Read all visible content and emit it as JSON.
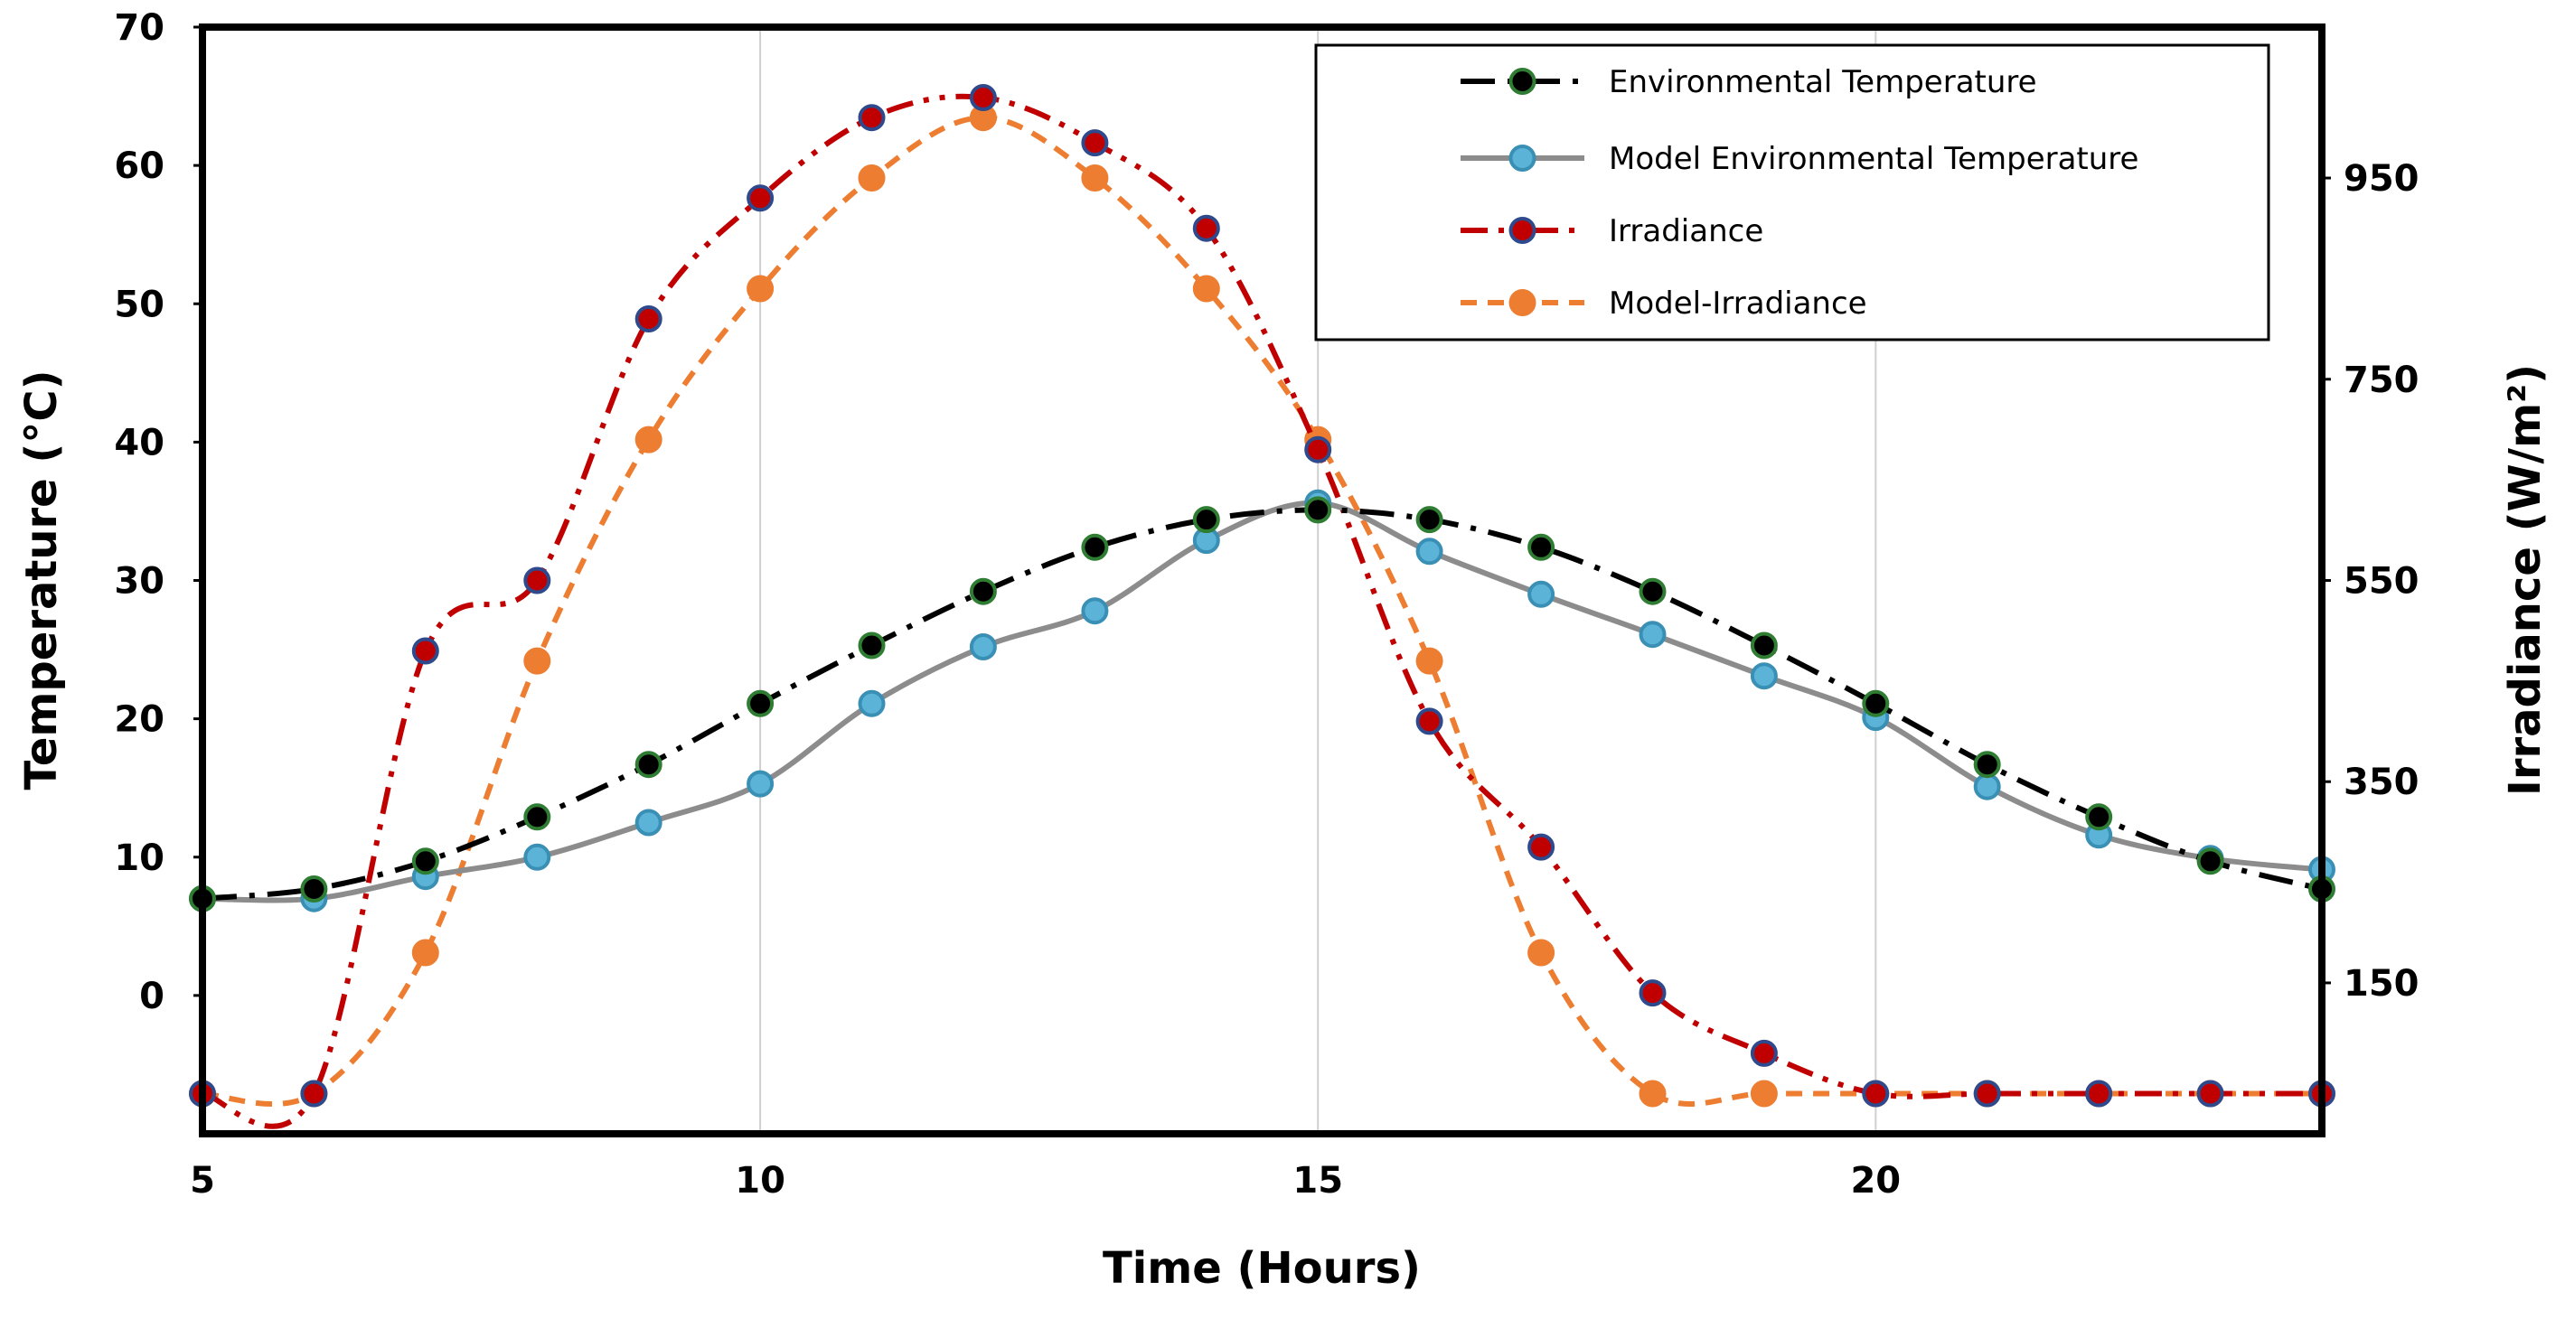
{
  "chart_data": {
    "type": "line",
    "xlabel": "Time (Hours)",
    "ylabel": "Temperature (°C)",
    "y2label": "Irradiance (W/m²)",
    "xlim": [
      5,
      24
    ],
    "ylim": [
      -10,
      70
    ],
    "y2lim": [
      0,
      1100
    ],
    "x_ticks": [
      "5",
      "10",
      "15",
      "20"
    ],
    "y_ticks": [
      "0",
      "10",
      "20",
      "30",
      "40",
      "50",
      "60",
      "70"
    ],
    "y2_ticks": [
      "150",
      "350",
      "550",
      "750",
      "950"
    ],
    "grid": "vertical",
    "legend_position": "top-right",
    "series": [
      {
        "name": "Environmental Temperature",
        "axis": "left",
        "color": "#000000",
        "marker_color": "#000000",
        "marker_edge": "#2e7d32",
        "x": [
          5,
          6,
          7,
          8,
          9,
          10,
          11,
          12,
          13,
          14,
          15,
          16,
          17,
          18,
          19,
          20,
          21,
          22,
          23,
          24
        ],
        "values": [
          7,
          7.7,
          9.7,
          12.9,
          16.7,
          21.1,
          25.3,
          29.2,
          32.4,
          34.4,
          35.1,
          34.4,
          32.4,
          29.2,
          25.3,
          21.1,
          16.7,
          12.9,
          9.7,
          7.7
        ]
      },
      {
        "name": "Model Environmental Temperature",
        "axis": "left",
        "color": "#8c8c8c",
        "marker_color": "#5bb4d8",
        "marker_edge": "#3a8fb5",
        "x": [
          5,
          6,
          7,
          8,
          9,
          10,
          11,
          12,
          13,
          14,
          15,
          16,
          17,
          18,
          19,
          20,
          21,
          22,
          23,
          24
        ],
        "values": [
          7,
          7,
          8.6,
          10,
          12.5,
          15.3,
          21.1,
          25.2,
          27.8,
          32.9,
          35.6,
          32.1,
          29,
          26.1,
          23.1,
          20.1,
          15.1,
          11.6,
          9.9,
          9.1
        ]
      },
      {
        "name": "Irradiance",
        "axis": "right",
        "color": "#c00000",
        "marker_color": "#c00000",
        "marker_edge": "#2e4a8c",
        "x": [
          5,
          6,
          7,
          8,
          9,
          10,
          11,
          12,
          13,
          14,
          15,
          16,
          17,
          18,
          19,
          20,
          21,
          22,
          23,
          24
        ],
        "values": [
          40,
          40,
          480,
          550,
          810,
          930,
          1010,
          1030,
          985,
          900,
          680,
          410,
          285,
          140,
          80,
          40,
          40,
          40,
          40,
          40
        ]
      },
      {
        "name": "Model-Irradiance",
        "axis": "right",
        "color": "#ed7d31",
        "marker_color": "#ed7d31",
        "marker_edge": "#ed7d31",
        "x": [
          5,
          6,
          7,
          8,
          9,
          10,
          11,
          12,
          13,
          14,
          15,
          16,
          17,
          18,
          19,
          20,
          21,
          22,
          23,
          24
        ],
        "values": [
          40,
          40,
          180,
          470,
          690,
          840,
          950,
          1010,
          950,
          840,
          690,
          470,
          180,
          40,
          40,
          40,
          40,
          40,
          40,
          40
        ]
      }
    ]
  }
}
